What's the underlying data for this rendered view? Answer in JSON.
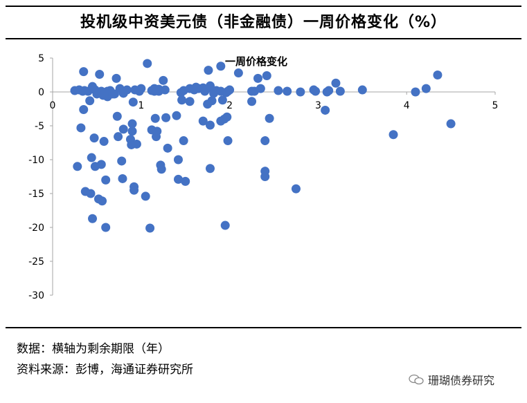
{
  "title": "投机级中资美元债（非金融债）一周价格变化（%）",
  "notes": [
    "数据：横轴为剩余期限（年）",
    "资料来源：彭博，海通证券研究所"
  ],
  "watermark": "珊瑚债券研究",
  "colors": {
    "marker": "#4472C4",
    "axis": "#A6A6A6"
  },
  "chart_data": {
    "type": "scatter",
    "title": "",
    "xlabel": "",
    "ylabel": "",
    "xlim": [
      0,
      5
    ],
    "ylim": [
      -30,
      5
    ],
    "xticks": [
      "0",
      "1",
      "2",
      "3",
      "4",
      "5"
    ],
    "yticks": [
      "5",
      "0",
      "-5",
      "-10",
      "-15",
      "-20",
      "-25",
      "-30"
    ],
    "grid": false,
    "legend": "top",
    "series": [
      {
        "name": "一周价格变化",
        "points": [
          [
            0.25,
            0.2
          ],
          [
            0.28,
            -11.0
          ],
          [
            0.3,
            0.3
          ],
          [
            0.32,
            -5.3
          ],
          [
            0.34,
            0.1
          ],
          [
            0.35,
            -2.6
          ],
          [
            0.35,
            3.0
          ],
          [
            0.36,
            0.2
          ],
          [
            0.37,
            -14.7
          ],
          [
            0.4,
            0.1
          ],
          [
            0.42,
            -1.3
          ],
          [
            0.43,
            -15.0
          ],
          [
            0.44,
            -9.7
          ],
          [
            0.45,
            -18.7
          ],
          [
            0.45,
            0.8
          ],
          [
            0.47,
            -6.8
          ],
          [
            0.48,
            -11.0
          ],
          [
            0.48,
            0.3
          ],
          [
            0.5,
            -0.3
          ],
          [
            0.52,
            -15.8
          ],
          [
            0.53,
            2.6
          ],
          [
            0.55,
            0.1
          ],
          [
            0.55,
            -10.7
          ],
          [
            0.56,
            -16.1
          ],
          [
            0.57,
            -0.5
          ],
          [
            0.58,
            -7.3
          ],
          [
            0.6,
            -13.0
          ],
          [
            0.6,
            -20.0
          ],
          [
            0.62,
            -0.7
          ],
          [
            0.62,
            0.1
          ],
          [
            0.65,
            0.2
          ],
          [
            0.68,
            -0.3
          ],
          [
            0.7,
            -0.3
          ],
          [
            0.72,
            2.0
          ],
          [
            0.73,
            -3.6
          ],
          [
            0.74,
            -6.6
          ],
          [
            0.76,
            0.5
          ],
          [
            0.78,
            -10.2
          ],
          [
            0.79,
            -12.8
          ],
          [
            0.8,
            -0.2
          ],
          [
            0.8,
            -5.5
          ],
          [
            0.84,
            0.3
          ],
          [
            0.88,
            -7.0
          ],
          [
            0.89,
            -7.8
          ],
          [
            0.9,
            -4.7
          ],
          [
            0.9,
            -5.8
          ],
          [
            0.91,
            -1.5
          ],
          [
            0.92,
            -14.0
          ],
          [
            0.92,
            -14.5
          ],
          [
            0.93,
            0.3
          ],
          [
            0.95,
            -7.7
          ],
          [
            0.98,
            0.1
          ],
          [
            1.0,
            0.5
          ],
          [
            1.05,
            -15.4
          ],
          [
            1.07,
            4.2
          ],
          [
            1.1,
            -20.1
          ],
          [
            1.12,
            -5.6
          ],
          [
            1.12,
            0.2
          ],
          [
            1.15,
            0.1
          ],
          [
            1.15,
            0.5
          ],
          [
            1.16,
            -3.9
          ],
          [
            1.17,
            -6.6
          ],
          [
            1.18,
            -5.8
          ],
          [
            1.2,
            0.4
          ],
          [
            1.2,
            0.1
          ],
          [
            1.22,
            -10.8
          ],
          [
            1.23,
            -11.4
          ],
          [
            1.25,
            1.7
          ],
          [
            1.27,
            0.3
          ],
          [
            1.28,
            -3.8
          ],
          [
            1.3,
            -8.3
          ],
          [
            1.4,
            -3.5
          ],
          [
            1.42,
            -10.0
          ],
          [
            1.42,
            -12.9
          ],
          [
            1.45,
            -0.1
          ],
          [
            1.46,
            -1.2
          ],
          [
            1.48,
            -7.2
          ],
          [
            1.48,
            0.2
          ],
          [
            1.5,
            -13.2
          ],
          [
            1.55,
            0.5
          ],
          [
            1.55,
            -1.4
          ],
          [
            1.6,
            0.3
          ],
          [
            1.62,
            0.7
          ],
          [
            1.65,
            0.5
          ],
          [
            1.7,
            0.6
          ],
          [
            1.7,
            -4.3
          ],
          [
            1.72,
            0.1
          ],
          [
            1.75,
            -1.8
          ],
          [
            1.76,
            3.2
          ],
          [
            1.78,
            -11.3
          ],
          [
            1.78,
            0.6
          ],
          [
            1.78,
            -4.9
          ],
          [
            1.78,
            0.9
          ],
          [
            1.8,
            -1.3
          ],
          [
            1.82,
            -0.2
          ],
          [
            1.85,
            0.2
          ],
          [
            1.9,
            -4.3
          ],
          [
            1.9,
            0.1
          ],
          [
            1.9,
            3.8
          ],
          [
            1.92,
            -1.2
          ],
          [
            1.94,
            -4.0
          ],
          [
            1.95,
            -19.7
          ],
          [
            1.96,
            -0.1
          ],
          [
            1.97,
            -3.7
          ],
          [
            1.98,
            0.1
          ],
          [
            1.98,
            -7.2
          ],
          [
            2.0,
            0.3
          ],
          [
            2.1,
            2.8
          ],
          [
            2.25,
            -1.4
          ],
          [
            2.25,
            0.1
          ],
          [
            2.28,
            0.1
          ],
          [
            2.32,
            2.0
          ],
          [
            2.35,
            0.5
          ],
          [
            2.4,
            -11.7
          ],
          [
            2.4,
            -12.5
          ],
          [
            2.4,
            -7.2
          ],
          [
            2.42,
            2.4
          ],
          [
            2.45,
            -3.9
          ],
          [
            2.55,
            0.2
          ],
          [
            2.65,
            0.1
          ],
          [
            2.75,
            -14.3
          ],
          [
            2.8,
            0.0
          ],
          [
            2.95,
            0.3
          ],
          [
            2.97,
            0.1
          ],
          [
            3.08,
            -2.7
          ],
          [
            3.1,
            0.0
          ],
          [
            3.12,
            0.2
          ],
          [
            3.2,
            1.3
          ],
          [
            3.25,
            0.1
          ],
          [
            3.5,
            0.3
          ],
          [
            3.85,
            -6.3
          ],
          [
            4.1,
            0.0
          ],
          [
            4.22,
            0.5
          ],
          [
            4.35,
            2.5
          ],
          [
            4.5,
            -4.7
          ]
        ]
      }
    ]
  }
}
